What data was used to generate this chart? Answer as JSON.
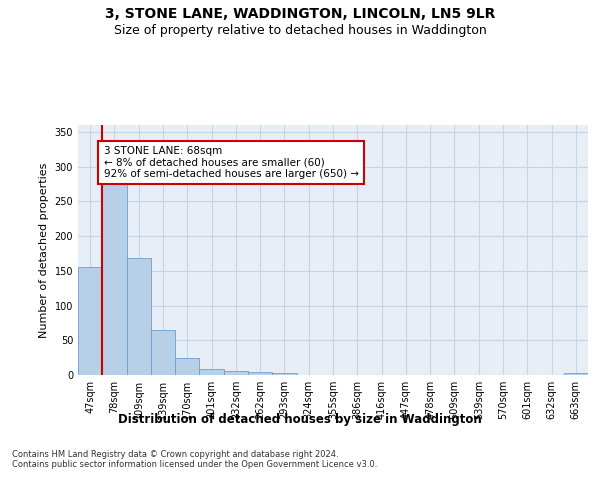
{
  "title": "3, STONE LANE, WADDINGTON, LINCOLN, LN5 9LR",
  "subtitle": "Size of property relative to detached houses in Waddington",
  "xlabel": "Distribution of detached houses by size in Waddington",
  "ylabel": "Number of detached properties",
  "bar_values": [
    155,
    285,
    168,
    65,
    25,
    9,
    6,
    4,
    3,
    0,
    0,
    0,
    0,
    0,
    0,
    0,
    0,
    0,
    0,
    0,
    3
  ],
  "bar_labels": [
    "47sqm",
    "78sqm",
    "109sqm",
    "139sqm",
    "170sqm",
    "201sqm",
    "232sqm",
    "262sqm",
    "293sqm",
    "324sqm",
    "355sqm",
    "386sqm",
    "416sqm",
    "447sqm",
    "478sqm",
    "509sqm",
    "539sqm",
    "570sqm",
    "601sqm",
    "632sqm",
    "663sqm"
  ],
  "bar_color": "#b8cfe8",
  "bar_edge_color": "#6a9fd0",
  "grid_color": "#c8d4e4",
  "background_color": "#e8eef6",
  "vline_color": "#cc0000",
  "annotation_text": "3 STONE LANE: 68sqm\n← 8% of detached houses are smaller (60)\n92% of semi-detached houses are larger (650) →",
  "annotation_box_color": "white",
  "annotation_box_edge": "#cc0000",
  "ylim": [
    0,
    360
  ],
  "yticks": [
    0,
    50,
    100,
    150,
    200,
    250,
    300,
    350
  ],
  "footer": "Contains HM Land Registry data © Crown copyright and database right 2024.\nContains public sector information licensed under the Open Government Licence v3.0.",
  "title_fontsize": 10,
  "subtitle_fontsize": 9,
  "xlabel_fontsize": 8.5,
  "ylabel_fontsize": 8,
  "tick_label_fontsize": 7,
  "annotation_fontsize": 7.5,
  "footer_fontsize": 6
}
